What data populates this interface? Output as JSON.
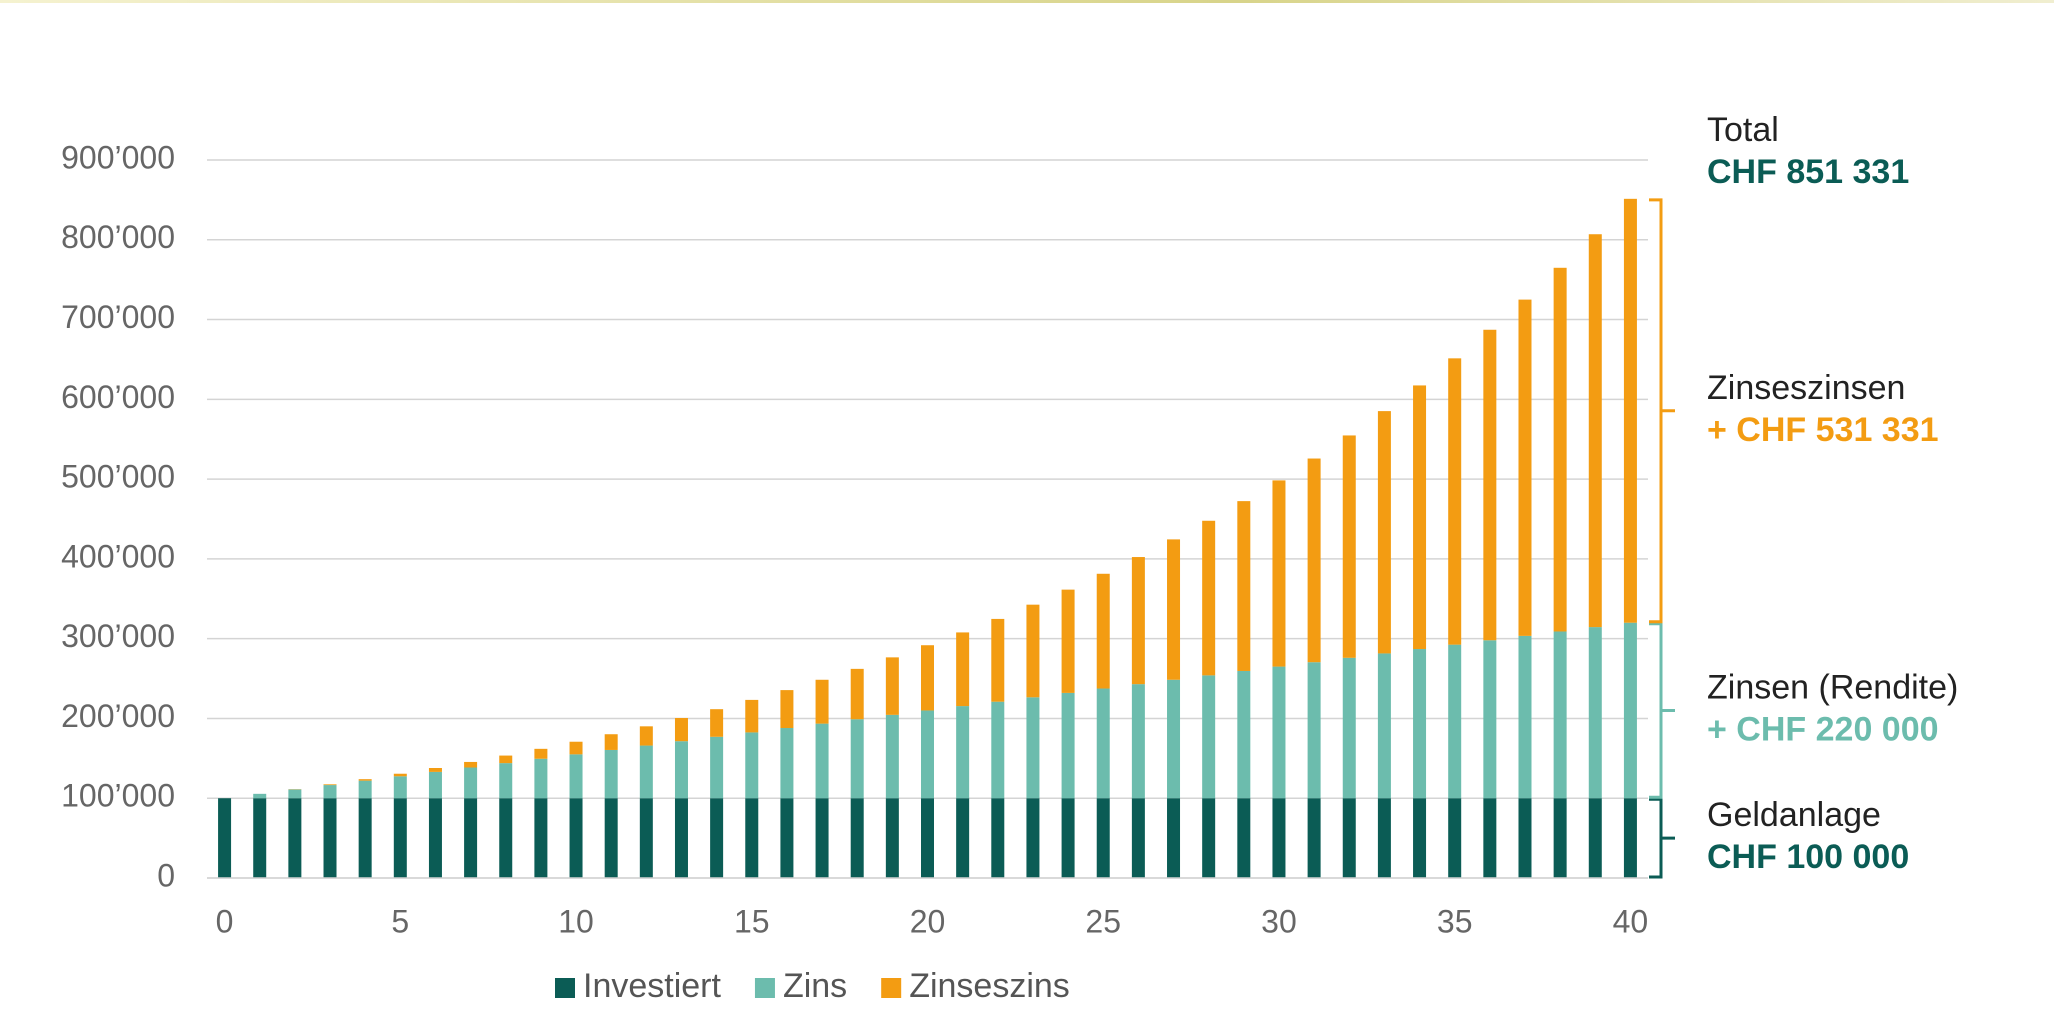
{
  "chart_data": {
    "type": "bar",
    "stacked": true,
    "x": [
      0,
      1,
      2,
      3,
      4,
      5,
      6,
      7,
      8,
      9,
      10,
      11,
      12,
      13,
      14,
      15,
      16,
      17,
      18,
      19,
      20,
      21,
      22,
      23,
      24,
      25,
      26,
      27,
      28,
      29,
      30,
      31,
      32,
      33,
      34,
      35,
      36,
      37,
      38,
      39,
      40
    ],
    "xlim": [
      -0.5,
      40.5
    ],
    "xticks": [
      0,
      5,
      10,
      15,
      20,
      25,
      30,
      35,
      40
    ],
    "ylim": [
      0,
      900000
    ],
    "yticks": [
      0,
      {
        "value": 100000,
        "label": "100’000"
      },
      {
        "value": 200000,
        "label": "200’000"
      },
      {
        "value": 300000,
        "label": "300’000"
      },
      {
        "value": 400000,
        "label": "400’000"
      },
      {
        "value": 500000,
        "label": "500’000"
      },
      {
        "value": 600000,
        "label": "600’000"
      },
      {
        "value": 700000,
        "label": "700’000"
      },
      {
        "value": 800000,
        "label": "800’000"
      },
      {
        "value": 900000,
        "label": "900’000"
      }
    ],
    "grid": true,
    "legend": "bottom",
    "series": [
      {
        "name": "Investiert",
        "color": "#0b5c55",
        "values": [
          100000,
          100000,
          100000,
          100000,
          100000,
          100000,
          100000,
          100000,
          100000,
          100000,
          100000,
          100000,
          100000,
          100000,
          100000,
          100000,
          100000,
          100000,
          100000,
          100000,
          100000,
          100000,
          100000,
          100000,
          100000,
          100000,
          100000,
          100000,
          100000,
          100000,
          100000,
          100000,
          100000,
          100000,
          100000,
          100000,
          100000,
          100000,
          100000,
          100000,
          100000
        ]
      },
      {
        "name": "Zins",
        "color": "#6cbcad",
        "values": [
          0,
          5500,
          11000,
          16500,
          22000,
          27500,
          33000,
          38500,
          44000,
          49500,
          55000,
          60500,
          66000,
          71500,
          77000,
          82500,
          88000,
          93500,
          99000,
          104500,
          110000,
          115500,
          121000,
          126500,
          132000,
          137500,
          143000,
          148500,
          154000,
          159500,
          165000,
          170500,
          176000,
          181500,
          187000,
          192500,
          198000,
          203500,
          209000,
          214500,
          220000
        ]
      },
      {
        "name": "Zinseszins",
        "color": "#f39c12",
        "values": [
          0,
          0,
          303,
          924,
          1883,
          3196,
          4884,
          6968,
          9469,
          12409,
          15814,
          19709,
          24121,
          29077,
          34609,
          40748,
          47526,
          54980,
          63147,
          72065,
          81776,
          92323,
          103754,
          116115,
          129459,
          143839,
          159313,
          175940,
          193784,
          212912,
          233395,
          255307,
          278726,
          303736,
          330424,
          358883,
          389209,
          421505,
          455880,
          492449,
          531331
        ]
      }
    ],
    "total": {
      "label": "Total",
      "value_label": "CHF 851 331"
    },
    "annotations": [
      {
        "label": "Geldanlage",
        "value_label": "CHF 100 000"
      },
      {
        "label": "Zinsen (Rendite)",
        "value_label": "+ CHF 220 000"
      },
      {
        "label": "Zinseszinsen",
        "value_label": "+ CHF 531 331"
      }
    ]
  }
}
